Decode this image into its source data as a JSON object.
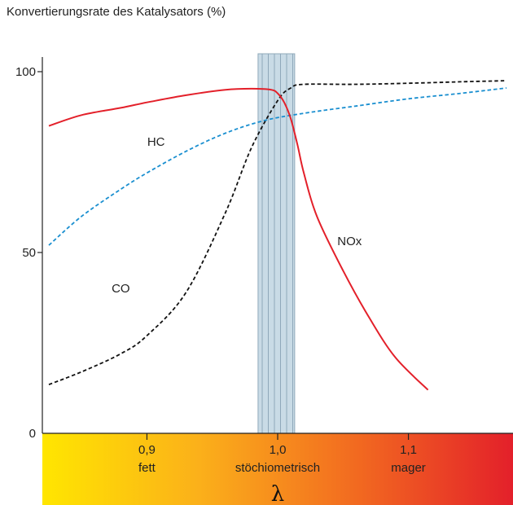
{
  "chart_data": {
    "type": "line",
    "title": "Konvertierungsrate des Katalysators (%)",
    "xlabel": "λ",
    "xlim": [
      0.82,
      1.18
    ],
    "ylim": [
      0,
      100
    ],
    "x_ticks": [
      {
        "value": 0.9,
        "label": "0,9",
        "sublabel": "fett"
      },
      {
        "value": 1.0,
        "label": "1,0",
        "sublabel": "stöchiometrisch"
      },
      {
        "value": 1.1,
        "label": "1,1",
        "sublabel": "mager"
      }
    ],
    "y_ticks": [
      {
        "value": 0,
        "label": "0"
      },
      {
        "value": 50,
        "label": "50"
      },
      {
        "value": 100,
        "label": "100"
      }
    ],
    "stoich_band": [
      0.985,
      1.013
    ],
    "series": [
      {
        "name": "NOx",
        "color": "#e3202a",
        "dash": "solid",
        "x": [
          0.825,
          0.85,
          0.88,
          0.9,
          0.93,
          0.96,
          0.98,
          0.995,
          1.0,
          1.005,
          1.01,
          1.015,
          1.02,
          1.03,
          1.05,
          1.07,
          1.09,
          1.115
        ],
        "y": [
          85,
          88,
          90,
          91.5,
          93.5,
          95,
          95.3,
          95,
          94,
          91.5,
          87,
          80,
          72,
          60,
          45,
          32,
          21,
          12
        ]
      },
      {
        "name": "HC",
        "color": "#1a8fd0",
        "dash": "dashed",
        "x": [
          0.825,
          0.85,
          0.88,
          0.9,
          0.93,
          0.96,
          0.99,
          1.02,
          1.06,
          1.1,
          1.14,
          1.175
        ],
        "y": [
          52,
          60,
          67.5,
          72,
          78,
          83,
          86.5,
          88.5,
          90.5,
          92.5,
          94,
          95.5
        ]
      },
      {
        "name": "CO",
        "color": "#111111",
        "dash": "dashed",
        "x": [
          0.825,
          0.85,
          0.88,
          0.9,
          0.93,
          0.96,
          0.98,
          1.0,
          1.01,
          1.02,
          1.06,
          1.1,
          1.14,
          1.175
        ],
        "y": [
          13.5,
          17,
          22,
          27,
          39,
          61,
          79,
          92,
          95.5,
          96.5,
          96.5,
          96.8,
          97.2,
          97.5
        ]
      }
    ],
    "series_labels": [
      {
        "name": "HC",
        "x": 0.907,
        "y": 79.5
      },
      {
        "name": "CO",
        "x": 0.88,
        "y": 39
      },
      {
        "name": "NOx",
        "x": 1.055,
        "y": 52
      }
    ],
    "x_band_gradient": [
      "#ffe600",
      "#fbb01a",
      "#f26a20",
      "#e3202a"
    ]
  }
}
